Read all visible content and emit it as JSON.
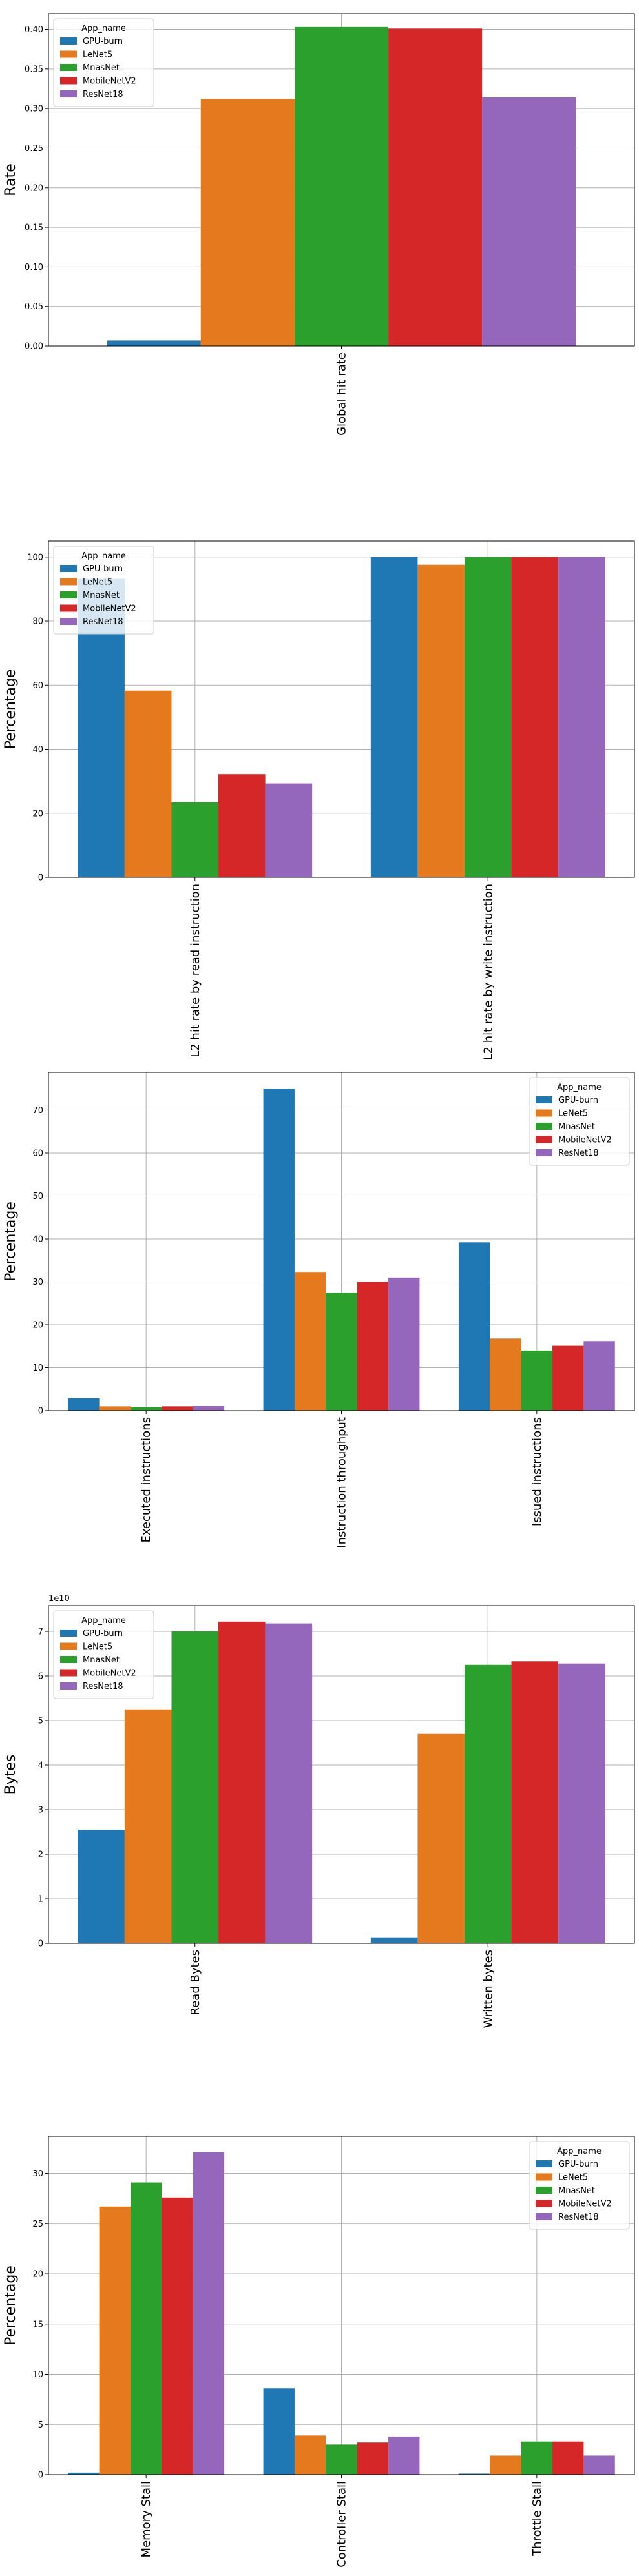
{
  "colors": {
    "GPU-burn": "#1f77b4",
    "LeNet5": "#e5791d",
    "MnasNet": "#2ca02c",
    "MobileNetV2": "#d62728",
    "ResNet18": "#9467bd"
  },
  "chart_data": [
    {
      "type": "bar",
      "categories": [
        "Global hit rate"
      ],
      "series": [
        {
          "name": "GPU-burn",
          "values": [
            0.007
          ]
        },
        {
          "name": "LeNet5",
          "values": [
            0.312
          ]
        },
        {
          "name": "MnasNet",
          "values": [
            0.403
          ]
        },
        {
          "name": "MobileNetV2",
          "values": [
            0.401
          ]
        },
        {
          "name": "ResNet18",
          "values": [
            0.314
          ]
        }
      ],
      "ylabel": "Rate",
      "yticks": [
        "0.00",
        "0.05",
        "0.10",
        "0.15",
        "0.20",
        "0.25",
        "0.30",
        "0.35",
        "0.40"
      ],
      "ylim": [
        0,
        0.42
      ],
      "legend": {
        "title": "App_name",
        "position": "upper left"
      },
      "grid": true
    },
    {
      "type": "bar",
      "categories": [
        "L2 hit rate by read instruction",
        "L2 hit rate by write instruction"
      ],
      "series": [
        {
          "name": "GPU-burn",
          "values": [
            93.2,
            100
          ]
        },
        {
          "name": "LeNet5",
          "values": [
            58.3,
            97.6
          ]
        },
        {
          "name": "MnasNet",
          "values": [
            23.4,
            100
          ]
        },
        {
          "name": "MobileNetV2",
          "values": [
            32.2,
            100
          ]
        },
        {
          "name": "ResNet18",
          "values": [
            29.3,
            100
          ]
        }
      ],
      "ylabel": "Percentage",
      "yticks": [
        "0",
        "20",
        "40",
        "60",
        "80",
        "100"
      ],
      "ylim": [
        0,
        105
      ],
      "legend": {
        "title": "App_name",
        "position": "upper left"
      },
      "grid": true
    },
    {
      "type": "bar",
      "categories": [
        "Executed instructions",
        "Instruction throughput",
        "Issued instructions"
      ],
      "series": [
        {
          "name": "GPU-burn",
          "values": [
            2.9,
            75.0,
            39.2
          ]
        },
        {
          "name": "LeNet5",
          "values": [
            1.0,
            32.3,
            16.8
          ]
        },
        {
          "name": "MnasNet",
          "values": [
            0.8,
            27.5,
            14.0
          ]
        },
        {
          "name": "MobileNetV2",
          "values": [
            1.0,
            30.0,
            15.1
          ]
        },
        {
          "name": "ResNet18",
          "values": [
            1.1,
            31.0,
            16.2
          ]
        }
      ],
      "ylabel": "Percentage",
      "yticks": [
        "0",
        "10",
        "20",
        "30",
        "40",
        "50",
        "60",
        "70"
      ],
      "ylim": [
        0,
        78.8
      ],
      "legend": {
        "title": "App_name",
        "position": "upper right"
      },
      "grid": true
    },
    {
      "type": "bar",
      "categories": [
        "Read Bytes",
        "Written bytes"
      ],
      "series": [
        {
          "name": "GPU-burn",
          "values": [
            2.55,
            0.12
          ]
        },
        {
          "name": "LeNet5",
          "values": [
            5.25,
            4.7
          ]
        },
        {
          "name": "MnasNet",
          "values": [
            7.0,
            6.25
          ]
        },
        {
          "name": "MobileNetV2",
          "values": [
            7.22,
            6.33
          ]
        },
        {
          "name": "ResNet18",
          "values": [
            7.18,
            6.28
          ]
        }
      ],
      "ylabel": "Bytes",
      "offset_label": "1e10",
      "yticks": [
        "0",
        "1",
        "2",
        "3",
        "4",
        "5",
        "6",
        "7"
      ],
      "ylim": [
        0,
        7.58
      ],
      "legend": {
        "title": "App_name",
        "position": "upper left"
      },
      "grid": true
    },
    {
      "type": "bar",
      "categories": [
        "Memory Stall",
        "Controller Stall",
        "Throttle Stall"
      ],
      "series": [
        {
          "name": "GPU-burn",
          "values": [
            0.2,
            8.6,
            0.1
          ]
        },
        {
          "name": "LeNet5",
          "values": [
            26.7,
            3.9,
            1.9
          ]
        },
        {
          "name": "MnasNet",
          "values": [
            29.1,
            3.0,
            3.3
          ]
        },
        {
          "name": "MobileNetV2",
          "values": [
            27.6,
            3.2,
            3.3
          ]
        },
        {
          "name": "ResNet18",
          "values": [
            32.1,
            3.8,
            1.9
          ]
        }
      ],
      "ylabel": "Percentage",
      "yticks": [
        "0",
        "5",
        "10",
        "15",
        "20",
        "25",
        "30"
      ],
      "ylim": [
        0,
        33.7
      ],
      "legend": {
        "title": "App_name",
        "position": "upper right"
      },
      "grid": true
    }
  ]
}
